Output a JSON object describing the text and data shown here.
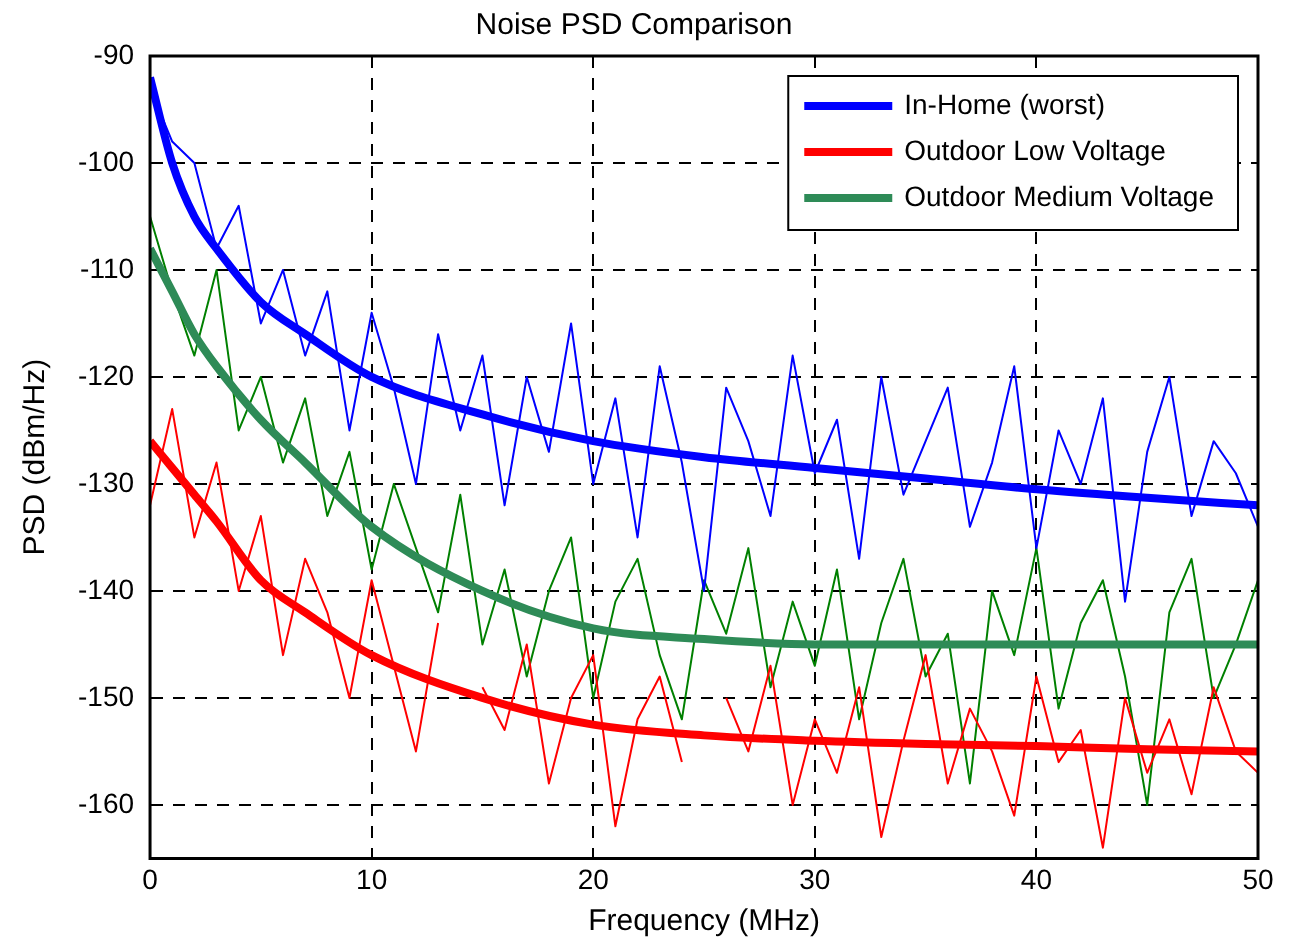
{
  "chart_data": {
    "type": "line",
    "title": "Noise PSD Comparison",
    "xlabel": "Frequency (MHz)",
    "ylabel": "PSD (dBm/Hz)",
    "x": [
      0,
      1,
      2,
      3,
      4,
      5,
      6,
      7,
      8,
      9,
      10,
      11,
      12,
      13,
      14,
      15,
      16,
      17,
      18,
      19,
      20,
      21,
      22,
      23,
      24,
      25,
      26,
      27,
      28,
      29,
      30,
      31,
      32,
      33,
      34,
      35,
      36,
      37,
      38,
      39,
      40,
      41,
      42,
      43,
      44,
      45,
      46,
      47,
      48,
      49,
      50
    ],
    "series": [
      {
        "color": "#0000ff",
        "values": [
          -93,
          -98,
          -100,
          -108,
          -104,
          -115,
          -110,
          -118,
          -112,
          -125,
          -114,
          -121,
          -130,
          -116,
          -125,
          -118,
          -132,
          -120,
          -127,
          -115,
          -130,
          -122,
          -135,
          -119,
          -128,
          -140,
          -121,
          -126,
          -133,
          -118,
          -129,
          -124,
          -137,
          -120,
          -131,
          -126,
          -121,
          -134,
          -128,
          -119,
          -136,
          -125,
          -130,
          -122,
          -141,
          -127,
          -120,
          -133,
          -126,
          -129,
          -134
        ]
      },
      {
        "color": "#ff0000",
        "values": [
          -132,
          -123,
          -135,
          -128,
          -140,
          -133,
          -146,
          -137,
          -142,
          -150,
          -139,
          -147,
          -155,
          -143,
          null,
          -149,
          -153,
          -145,
          -158,
          -150,
          -146,
          -162,
          -152,
          -148,
          -156,
          null,
          -150,
          -155,
          -147,
          -160,
          -152,
          -157,
          -149,
          -163,
          -154,
          -146,
          -158,
          -151,
          -155,
          -161,
          -148,
          -156,
          -153,
          -164,
          -150,
          -157,
          -152,
          -159,
          -149,
          -155,
          -157
        ]
      },
      {
        "color": "#008000",
        "values": [
          -105,
          -112,
          -118,
          -110,
          -125,
          -120,
          -128,
          -122,
          -133,
          -127,
          -138,
          -130,
          -136,
          -142,
          -131,
          -145,
          -138,
          -148,
          -140,
          -135,
          -150,
          -141,
          -137,
          -146,
          -152,
          -139,
          -144,
          -136,
          -149,
          -141,
          -147,
          -138,
          -152,
          -143,
          -137,
          -148,
          -144,
          -158,
          -140,
          -146,
          -136,
          -151,
          -143,
          -139,
          -148,
          -160,
          -142,
          -137,
          -150,
          -145,
          -139
        ]
      },
      {
        "name": "In-Home (worst)",
        "color": "#0000ff",
        "x": [
          0,
          1,
          2,
          3,
          5,
          7,
          10,
          15,
          20,
          25,
          30,
          35,
          40,
          45,
          50
        ],
        "values": [
          -92,
          -100,
          -105,
          -108,
          -113,
          -116,
          -120,
          -123.5,
          -126,
          -127.5,
          -128.5,
          -129.5,
          -130.5,
          -131.3,
          -132
        ]
      },
      {
        "name": "Outdoor Low Voltage",
        "color": "#ff0000",
        "x": [
          0,
          1,
          2,
          3,
          5,
          7,
          10,
          15,
          20,
          25,
          30,
          35,
          40,
          45,
          50
        ],
        "values": [
          -126,
          -128.5,
          -131,
          -133.5,
          -139,
          -142,
          -146,
          -150,
          -152.5,
          -153.5,
          -154,
          -154.3,
          -154.5,
          -154.8,
          -155
        ]
      },
      {
        "name": "Outdoor Medium Voltage",
        "color": "#2e8b57",
        "x": [
          0,
          1,
          2,
          3,
          5,
          7,
          10,
          15,
          20,
          25,
          30,
          35,
          40,
          45,
          50
        ],
        "values": [
          -108,
          -112,
          -116,
          -119,
          -124,
          -128,
          -134,
          -140,
          -143.5,
          -144.5,
          -145,
          -145,
          -145,
          -145,
          -145
        ]
      }
    ],
    "xlim": [
      0,
      50
    ],
    "xticks": [
      0,
      10,
      20,
      30,
      40,
      50
    ],
    "ylim": [
      -165,
      -90
    ],
    "yticks": [
      -160,
      -150,
      -140,
      -130,
      -120,
      -110,
      -100,
      -90
    ],
    "grid": true,
    "legend": "top right"
  }
}
